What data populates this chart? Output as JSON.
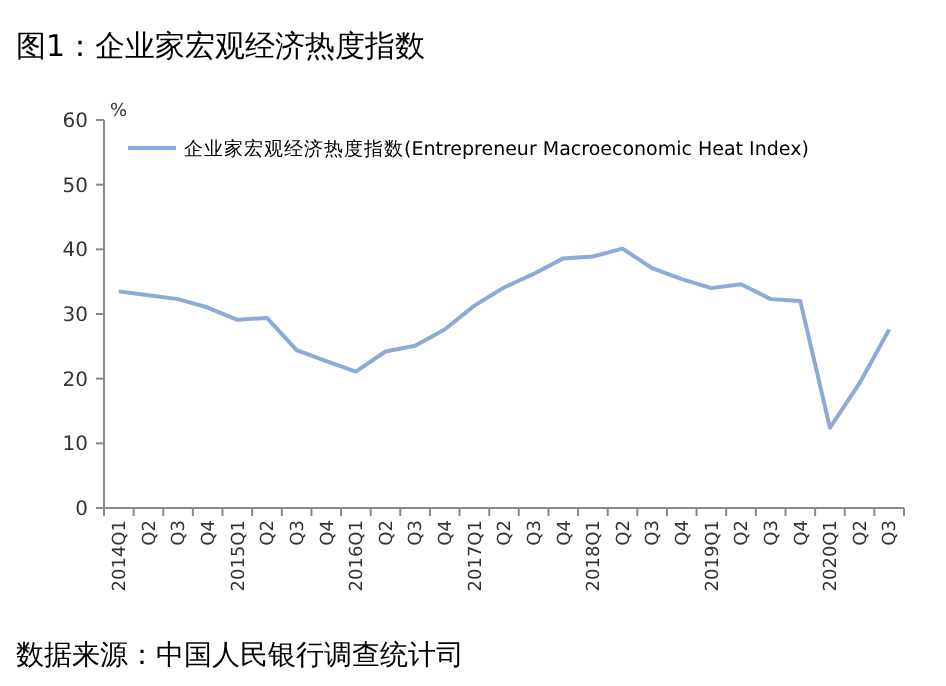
{
  "chart_data": {
    "type": "line",
    "title": "图1：企业家宏观经济热度指数",
    "ylabel": "%",
    "categories": [
      "2014Q1",
      "Q2",
      "Q3",
      "Q4",
      "2015Q1",
      "Q2",
      "Q3",
      "Q4",
      "2016Q1",
      "Q2",
      "Q3",
      "Q4",
      "2017Q1",
      "Q2",
      "Q3",
      "Q4",
      "2018Q1",
      "Q2",
      "Q3",
      "Q4",
      "2019Q1",
      "Q2",
      "Q3",
      "Q4",
      "2020Q1",
      "Q2",
      "Q3"
    ],
    "series": [
      {
        "name": "企业家宏观经济热度指数(Entrepreneur Macroeconomic Heat Index)",
        "color": "#8eaad8",
        "values": [
          33.5,
          32.9,
          32.3,
          31.0,
          29.1,
          29.4,
          24.4,
          22.7,
          21.1,
          24.2,
          25.1,
          27.6,
          31.3,
          34.1,
          36.2,
          38.6,
          38.9,
          40.1,
          37.1,
          35.4,
          34.0,
          34.6,
          32.3,
          32.0,
          12.4,
          19.3,
          27.6
        ]
      }
    ],
    "ylim": [
      0,
      60
    ],
    "yticks": [
      0,
      10,
      20,
      30,
      40,
      50,
      60
    ],
    "legend": "top left",
    "grid": false,
    "marker": "none",
    "line_style": "solid",
    "annotations": [
      "数据来源：中国人民银行调查统计司"
    ]
  }
}
